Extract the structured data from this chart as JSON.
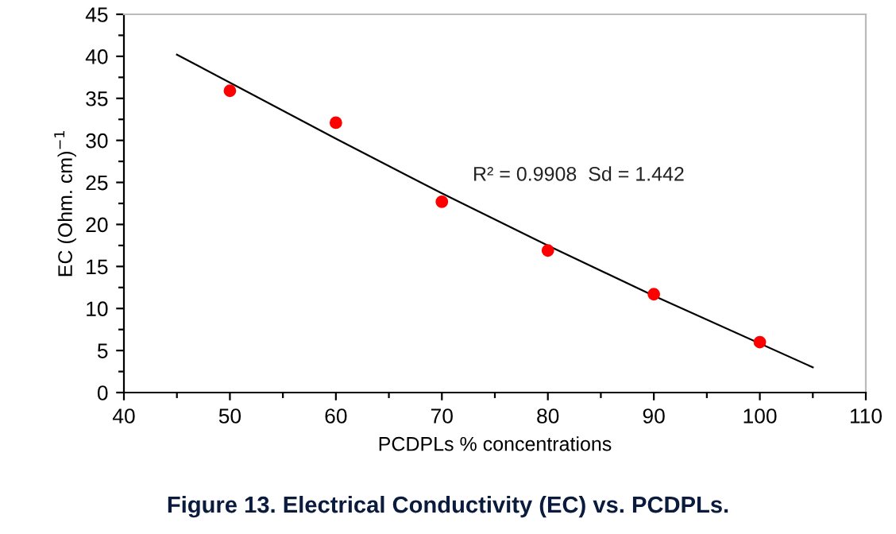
{
  "chart_data": {
    "type": "scatter",
    "xlabel": "PCDPLs % concentrations",
    "ylabel": "EC (Ohm. cm)$^{−1}$",
    "annotations": [
      "R² = 0.9908  Sd = 1.442",
      "Figure 13. Electrical Conductivity (EC) vs. PCDPLs."
    ],
    "x": [
      50,
      60,
      70,
      80,
      90,
      100
    ],
    "series": [
      {
        "color": "#ff0000",
        "marker": "circle",
        "values": [
          35.9,
          32.1,
          22.7,
          16.9,
          11.7,
          6.0
        ]
      },
      {
        "type": "line",
        "color": "#000000",
        "marker": "none",
        "line_style": "solid",
        "x": [
          45,
          60,
          70,
          80,
          90,
          105
        ],
        "values": [
          40.2,
          30.2,
          23.7,
          17.5,
          11.5,
          3.0
        ]
      }
    ],
    "xlim": [
      40,
      110
    ],
    "ylim": [
      0,
      45
    ],
    "xticks": [
      40,
      {
        "value": 45,
        "label": null
      },
      50,
      {
        "value": 55,
        "label": null
      },
      60,
      {
        "value": 65,
        "label": null
      },
      70,
      {
        "value": 75,
        "label": null
      },
      80,
      {
        "value": 85,
        "label": null
      },
      90,
      {
        "value": 95,
        "label": null
      },
      100,
      {
        "value": 105,
        "label": null
      },
      110
    ],
    "yticks": [
      0,
      {
        "value": 2.5,
        "label": null
      },
      5,
      {
        "value": 7.5,
        "label": null
      },
      10,
      {
        "value": 12.5,
        "label": null
      },
      15,
      {
        "value": 17.5,
        "label": null
      },
      20,
      {
        "value": 22.5,
        "label": null
      },
      25,
      {
        "value": 27.5,
        "label": null
      },
      30,
      {
        "value": 32.5,
        "label": null
      },
      35,
      {
        "value": 37.5,
        "label": null
      },
      40,
      {
        "value": 42.5,
        "label": null
      },
      45
    ],
    "grid": false,
    "legend": false
  }
}
